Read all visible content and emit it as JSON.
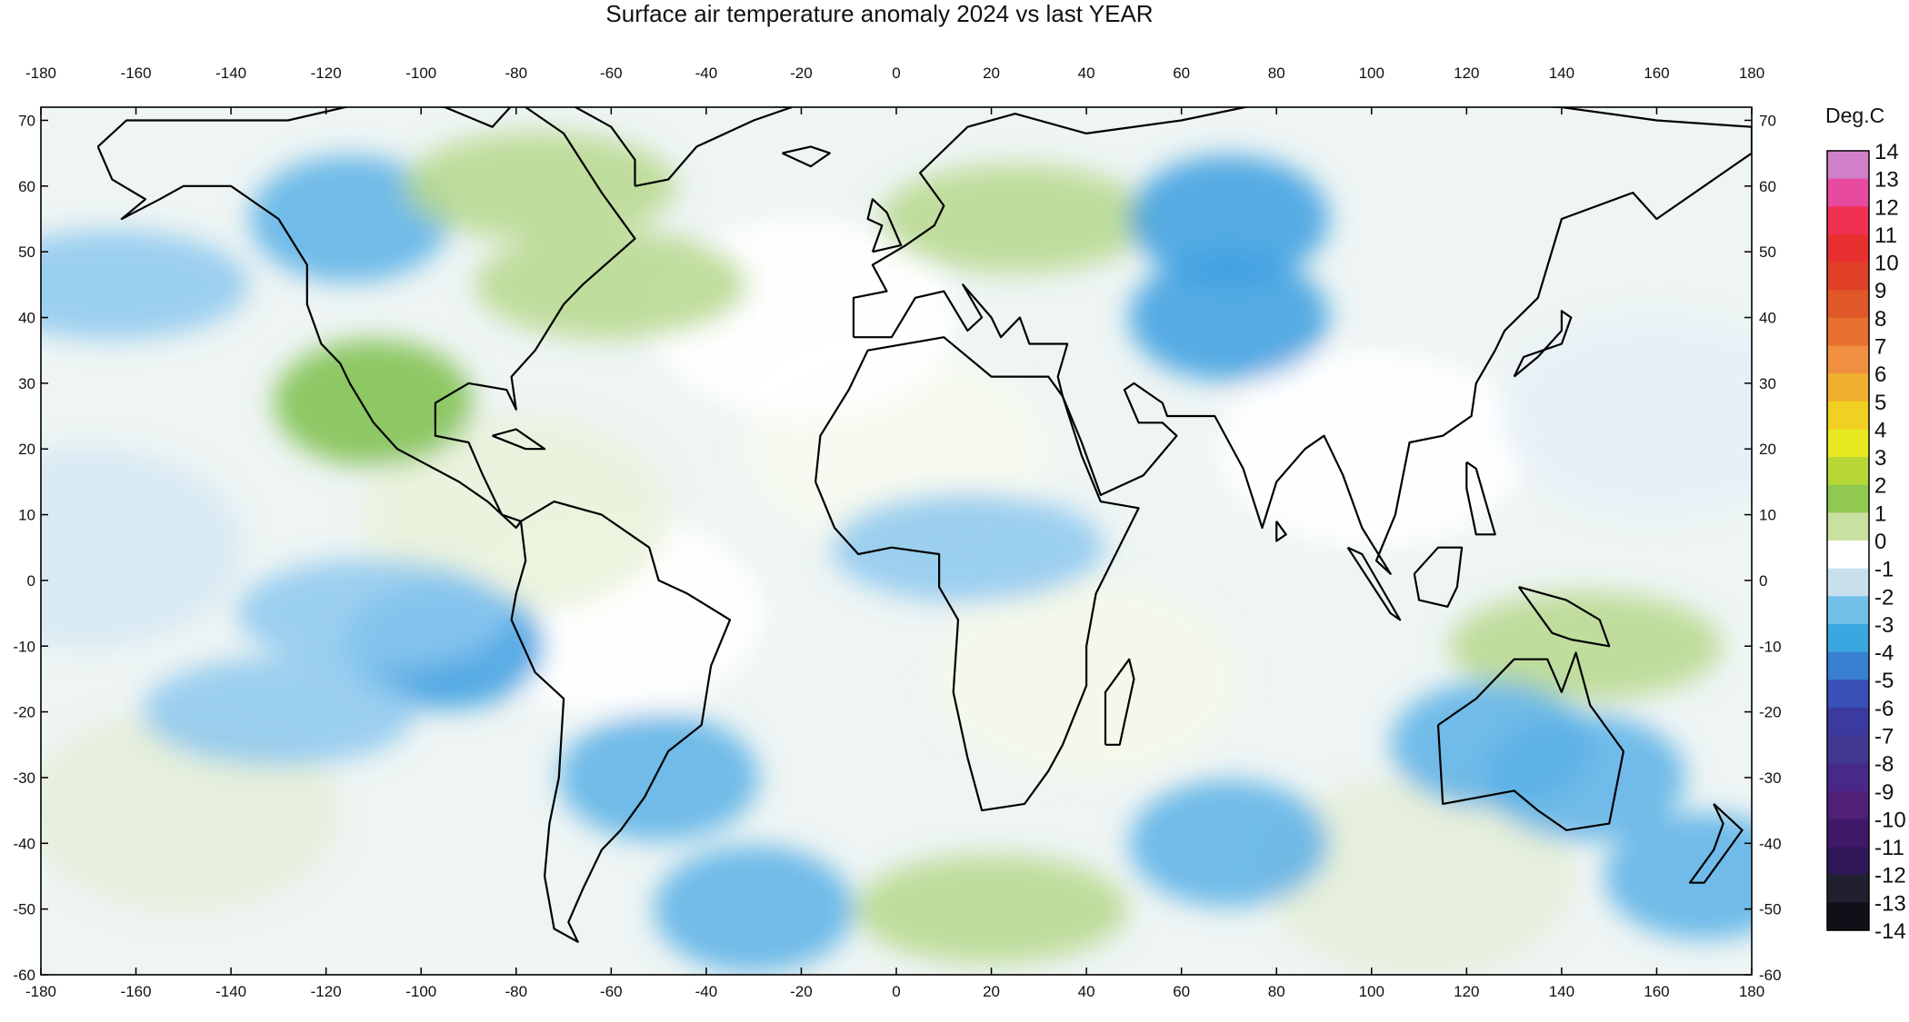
{
  "title": "Surface air temperature anomaly 2024 vs last YEAR",
  "map": {
    "projection": "equirectangular",
    "lon_range": [
      -180,
      180
    ],
    "lat_range": [
      -60,
      72
    ],
    "lon_ticks": [
      "-180",
      "-160",
      "-140",
      "-120",
      "-100",
      "-80",
      "-60",
      "-40",
      "-20",
      "0",
      "20",
      "40",
      "60",
      "80",
      "100",
      "120",
      "140",
      "160",
      "180"
    ],
    "lat_ticks": [
      "70",
      "60",
      "50",
      "40",
      "30",
      "20",
      "10",
      "0",
      "-10",
      "-20",
      "-30",
      "-40",
      "-50",
      "-60"
    ],
    "coastlines": "black",
    "anomaly_regions": [
      {
        "lon": -95,
        "lat": -10,
        "value": -2.5
      },
      {
        "lon": -130,
        "lat": -20,
        "value": -1.5
      },
      {
        "lon": -110,
        "lat": -5,
        "value": -1.5
      },
      {
        "lon": -115,
        "lat": 55,
        "value": -2
      },
      {
        "lon": -165,
        "lat": 45,
        "value": -1.5
      },
      {
        "lon": -75,
        "lat": 60,
        "value": 1.5
      },
      {
        "lon": -110,
        "lat": 27,
        "value": 2
      },
      {
        "lon": -60,
        "lat": 45,
        "value": 1
      },
      {
        "lon": 25,
        "lat": 55,
        "value": 1.5
      },
      {
        "lon": 70,
        "lat": 55,
        "value": -2.5
      },
      {
        "lon": 70,
        "lat": 40,
        "value": -2.5
      },
      {
        "lon": 15,
        "lat": 5,
        "value": -1.5
      },
      {
        "lon": 145,
        "lat": -10,
        "value": 1
      },
      {
        "lon": 125,
        "lat": -25,
        "value": -2
      },
      {
        "lon": 145,
        "lat": -30,
        "value": -2
      },
      {
        "lon": 70,
        "lat": -40,
        "value": -2
      },
      {
        "lon": -30,
        "lat": -50,
        "value": -2
      },
      {
        "lon": -50,
        "lat": -30,
        "value": -2
      },
      {
        "lon": 20,
        "lat": -50,
        "value": 1.5
      },
      {
        "lon": 170,
        "lat": -45,
        "value": -2
      }
    ]
  },
  "colorbar": {
    "unit": "Deg.C",
    "labels": [
      "14",
      "13",
      "12",
      "11",
      "10",
      "9",
      "8",
      "7",
      "6",
      "5",
      "4",
      "3",
      "2",
      "1",
      "0",
      "-1",
      "-2",
      "-3",
      "-4",
      "-5",
      "-6",
      "-7",
      "-8",
      "-9",
      "-10",
      "-11",
      "-12",
      "-13",
      "-14"
    ],
    "colors": [
      "#d080c8",
      "#e84aa0",
      "#f03050",
      "#e83030",
      "#e04028",
      "#e05828",
      "#e87030",
      "#f09040",
      "#f0b030",
      "#f0d020",
      "#e8e820",
      "#b8d838",
      "#90c850",
      "#c8e0a0",
      "#ffffff",
      "#c8e0ee",
      "#70c0e8",
      "#3aa8e0",
      "#3a80d0",
      "#3850b8",
      "#3a3aa0",
      "#403890",
      "#482888",
      "#502078",
      "#401868",
      "#301858",
      "#202030",
      "#101018"
    ]
  }
}
